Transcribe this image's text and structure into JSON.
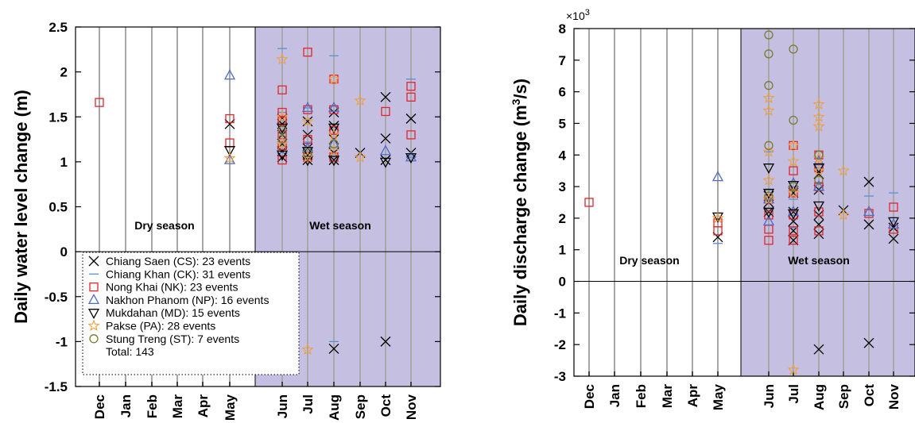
{
  "chart_data": [
    {
      "type": "scatter",
      "ylabel": "Daily water level change (m)",
      "ylim": [
        -1.5,
        2.5
      ],
      "yticks": [
        "-1.5",
        "-1",
        "-0.5",
        "0",
        "0.5",
        "1",
        "1.5",
        "2",
        "2.5"
      ],
      "categories": [
        "Dec",
        "Jan",
        "Feb",
        "Mar",
        "Apr",
        "May",
        "Jun",
        "Jul",
        "Aug",
        "Sep",
        "Oct",
        "Nov"
      ],
      "seasons": {
        "dry": "Dry season",
        "wet": "Wet season"
      },
      "wet_shade_color": "#c5c0e2",
      "legend": {
        "placement": "lower-left",
        "total": "Total: 143",
        "entries": [
          "Chiang Saen (CS): 23 events",
          "Chiang Khan (CK): 31 events",
          "Nong Khai (NK): 23 events",
          "Nakhon Phanom (NP): 16 events",
          "Mukdahan (MD): 15 events",
          "Pakse (PA): 28 events",
          "Stung Treng (ST): 7 events"
        ]
      },
      "series": [
        {
          "marker": "x",
          "color": "#000000",
          "points": [
            [
              5,
              1.42
            ],
            [
              6,
              1.05
            ],
            [
              6,
              1.12
            ],
            [
              6,
              1.2
            ],
            [
              6,
              1.3
            ],
            [
              6,
              1.42
            ],
            [
              6,
              1.48
            ],
            [
              7,
              1.02
            ],
            [
              7,
              1.08
            ],
            [
              7,
              1.15
            ],
            [
              7,
              1.3
            ],
            [
              7,
              1.45
            ],
            [
              8,
              1.02
            ],
            [
              8,
              1.1
            ],
            [
              8,
              1.25
            ],
            [
              8,
              1.4
            ],
            [
              8,
              1.55
            ],
            [
              8,
              -1.08
            ],
            [
              9,
              1.1
            ],
            [
              10,
              1.72
            ],
            [
              10,
              1.26
            ],
            [
              10,
              1.02
            ],
            [
              10,
              -1.0
            ],
            [
              11,
              1.48
            ],
            [
              11,
              1.1
            ]
          ]
        },
        {
          "marker": "dash",
          "color": "#5a8fd6",
          "points": [
            [
              6,
              2.26
            ],
            [
              6,
              1.55
            ],
            [
              6,
              1.1
            ],
            [
              7,
              1.6
            ],
            [
              7,
              1.22
            ],
            [
              8,
              2.18
            ],
            [
              8,
              1.62
            ],
            [
              8,
              1.1
            ],
            [
              8,
              -1.0
            ],
            [
              11,
              1.92
            ],
            [
              11,
              1.05
            ]
          ]
        },
        {
          "marker": "square",
          "color": "#e3242b",
          "points": [
            [
              0,
              1.66
            ],
            [
              5,
              1.48
            ],
            [
              5,
              1.21
            ],
            [
              6,
              1.8
            ],
            [
              6,
              1.55
            ],
            [
              6,
              1.45
            ],
            [
              6,
              1.3
            ],
            [
              6,
              1.18
            ],
            [
              6,
              1.02
            ],
            [
              7,
              2.22
            ],
            [
              7,
              1.58
            ],
            [
              7,
              1.25
            ],
            [
              7,
              1.05
            ],
            [
              8,
              1.92
            ],
            [
              8,
              1.58
            ],
            [
              8,
              1.35
            ],
            [
              8,
              1.05
            ],
            [
              10,
              1.56
            ],
            [
              11,
              1.84
            ],
            [
              11,
              1.72
            ],
            [
              11,
              1.3
            ]
          ]
        },
        {
          "marker": "triangle-up",
          "color": "#4f6cc6",
          "points": [
            [
              5,
              1.96
            ],
            [
              5,
              1.02
            ],
            [
              7,
              1.6
            ],
            [
              7,
              1.15
            ],
            [
              8,
              1.6
            ],
            [
              8,
              1.2
            ],
            [
              10,
              1.12
            ],
            [
              11,
              1.05
            ]
          ]
        },
        {
          "marker": "triangle-down",
          "color": "#000000",
          "points": [
            [
              5,
              1.13
            ],
            [
              6,
              1.38
            ],
            [
              6,
              1.08
            ],
            [
              7,
              1.02
            ],
            [
              7,
              1.12
            ],
            [
              8,
              1.38
            ],
            [
              8,
              1.02
            ],
            [
              10,
              1.0
            ],
            [
              11,
              1.05
            ]
          ]
        },
        {
          "marker": "star",
          "color": "#f0a040",
          "points": [
            [
              5,
              1.04
            ],
            [
              6,
              2.14
            ],
            [
              6,
              1.5
            ],
            [
              6,
              1.2
            ],
            [
              7,
              1.45
            ],
            [
              7,
              1.05
            ],
            [
              7,
              -1.09
            ],
            [
              8,
              1.92
            ],
            [
              8,
              1.3
            ],
            [
              8,
              1.12
            ],
            [
              9,
              1.68
            ],
            [
              9,
              1.05
            ]
          ]
        },
        {
          "marker": "circle",
          "color": "#7a7a30",
          "points": [
            [
              6,
              1.25
            ],
            [
              6,
              1.35
            ],
            [
              7,
              1.1
            ],
            [
              8,
              1.2
            ]
          ]
        }
      ]
    },
    {
      "type": "scatter",
      "ylabel_main": "Daily discharge change (m",
      "ylabel_sup": "3",
      "ylabel_tail": "/s)",
      "exponent_base": "×10",
      "exponent_sup": "3",
      "ylim": [
        -3,
        8
      ],
      "yticks": [
        "-3",
        "-2",
        "-1",
        "0",
        "1",
        "2",
        "3",
        "4",
        "5",
        "6",
        "7",
        "8"
      ],
      "categories": [
        "Dec",
        "Jan",
        "Feb",
        "Mar",
        "Apr",
        "May",
        "Jun",
        "Jul",
        "Aug",
        "Sep",
        "Oct",
        "Nov"
      ],
      "seasons": {
        "dry": "Dry season",
        "wet": "Wet season"
      },
      "wet_shade_color": "#c5c0e2",
      "series": [
        {
          "marker": "x",
          "color": "#000000",
          "points": [
            [
              5,
              1.4
            ],
            [
              6,
              2.2
            ],
            [
              6,
              2.5
            ],
            [
              6,
              2.7
            ],
            [
              7,
              1.3
            ],
            [
              7,
              1.6
            ],
            [
              7,
              1.9
            ],
            [
              7,
              2.2
            ],
            [
              7,
              2.8
            ],
            [
              8,
              1.5
            ],
            [
              8,
              1.8
            ],
            [
              8,
              2.1
            ],
            [
              8,
              2.9
            ],
            [
              8,
              3.4
            ],
            [
              8,
              -2.15
            ],
            [
              9,
              2.25
            ],
            [
              10,
              3.15
            ],
            [
              10,
              1.8
            ],
            [
              10,
              -1.95
            ],
            [
              11,
              1.35
            ],
            [
              11,
              1.7
            ]
          ]
        },
        {
          "marker": "dash",
          "color": "#5a8fd6",
          "points": [
            [
              5,
              1.2
            ],
            [
              6,
              2.9
            ],
            [
              6,
              4.1
            ],
            [
              7,
              1.7
            ],
            [
              7,
              2.6
            ],
            [
              8,
              3.1
            ],
            [
              8,
              3.6
            ],
            [
              10,
              2.7
            ],
            [
              11,
              2.8
            ]
          ]
        },
        {
          "marker": "square",
          "color": "#e3242b",
          "points": [
            [
              0,
              2.5
            ],
            [
              5,
              1.6
            ],
            [
              5,
              1.85
            ],
            [
              6,
              1.3
            ],
            [
              6,
              1.65
            ],
            [
              6,
              2.1
            ],
            [
              6,
              2.6
            ],
            [
              7,
              1.3
            ],
            [
              7,
              1.6
            ],
            [
              7,
              2.1
            ],
            [
              7,
              2.8
            ],
            [
              7,
              3.5
            ],
            [
              7,
              4.3
            ],
            [
              8,
              1.6
            ],
            [
              8,
              2.2
            ],
            [
              8,
              3.0
            ],
            [
              8,
              3.6
            ],
            [
              8,
              4.0
            ],
            [
              10,
              2.15
            ],
            [
              11,
              1.65
            ],
            [
              11,
              2.35
            ]
          ]
        },
        {
          "marker": "triangle-up",
          "color": "#4f6cc6",
          "points": [
            [
              5,
              3.3
            ],
            [
              6,
              1.9
            ],
            [
              6,
              2.6
            ],
            [
              7,
              2.2
            ],
            [
              7,
              3.1
            ],
            [
              8,
              3.0
            ],
            [
              8,
              3.8
            ],
            [
              10,
              2.2
            ],
            [
              11,
              1.8
            ]
          ]
        },
        {
          "marker": "triangle-down",
          "color": "#000000",
          "points": [
            [
              5,
              2.05
            ],
            [
              6,
              3.6
            ],
            [
              6,
              2.8
            ],
            [
              6,
              2.2
            ],
            [
              7,
              2.15
            ],
            [
              7,
              3.05
            ],
            [
              8,
              2.4
            ],
            [
              8,
              3.6
            ],
            [
              11,
              1.9
            ]
          ]
        },
        {
          "marker": "star",
          "color": "#f0a040",
          "points": [
            [
              5,
              2.0
            ],
            [
              6,
              5.8
            ],
            [
              6,
              5.4
            ],
            [
              6,
              4.1
            ],
            [
              6,
              3.2
            ],
            [
              6,
              2.6
            ],
            [
              7,
              4.3
            ],
            [
              7,
              3.8
            ],
            [
              7,
              2.8
            ],
            [
              7,
              -2.8
            ],
            [
              8,
              5.6
            ],
            [
              8,
              5.2
            ],
            [
              8,
              4.9
            ],
            [
              8,
              3.5
            ],
            [
              8,
              3.9
            ],
            [
              9,
              3.5
            ],
            [
              9,
              2.1
            ]
          ]
        },
        {
          "marker": "circle",
          "color": "#7a7a30",
          "points": [
            [
              6,
              7.8
            ],
            [
              6,
              7.2
            ],
            [
              6,
              6.2
            ],
            [
              6,
              4.3
            ],
            [
              6,
              2.7
            ],
            [
              7,
              7.35
            ],
            [
              7,
              5.1
            ],
            [
              7,
              3.0
            ],
            [
              8,
              3.2
            ],
            [
              8,
              4.0
            ]
          ]
        }
      ]
    }
  ]
}
